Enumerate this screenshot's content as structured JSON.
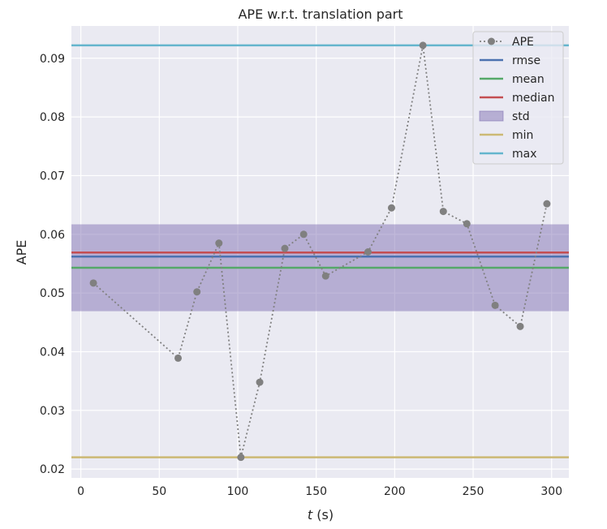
{
  "chart_data": {
    "type": "line",
    "title": "APE w.r.t. translation part",
    "xlabel_var": "t",
    "xlabel_unit": " (s)",
    "ylabel": "APE",
    "xlim": [
      -6,
      311
    ],
    "ylim": [
      0.0185,
      0.0955
    ],
    "xticks": [
      0,
      50,
      100,
      150,
      200,
      250,
      300
    ],
    "yticks": [
      0.02,
      0.03,
      0.04,
      0.05,
      0.06,
      0.07,
      0.08,
      0.09
    ],
    "grid": true,
    "legend_position": "top-right",
    "series": [
      {
        "name": "APE",
        "style": "dotted-line-with-markers",
        "color": "#808080",
        "x": [
          8,
          62,
          74,
          88,
          102,
          114,
          130,
          142,
          156,
          183,
          198,
          218,
          231,
          246,
          264,
          280,
          297
        ],
        "y": [
          0.0517,
          0.0389,
          0.0502,
          0.0585,
          0.022,
          0.0348,
          0.0576,
          0.06,
          0.0529,
          0.057,
          0.0645,
          0.0922,
          0.0639,
          0.0618,
          0.0479,
          0.0443,
          0.0652
        ]
      }
    ],
    "stats": {
      "rmse": 0.0562,
      "mean": 0.0543,
      "median": 0.0569,
      "std": 0.0074,
      "min": 0.022,
      "max": 0.0922
    },
    "legend": [
      {
        "label": "APE",
        "kind": "marker-line",
        "color": "#808080"
      },
      {
        "label": "rmse",
        "kind": "line",
        "color": "#4c72b0"
      },
      {
        "label": "mean",
        "kind": "line",
        "color": "#55a868"
      },
      {
        "label": "median",
        "kind": "line",
        "color": "#c44e52"
      },
      {
        "label": "std",
        "kind": "patch",
        "color": "#8172b3"
      },
      {
        "label": "min",
        "kind": "line",
        "color": "#ccb974"
      },
      {
        "label": "max",
        "kind": "line",
        "color": "#64b5cd"
      }
    ],
    "colors": {
      "plot_background": "#eaeaf2",
      "grid": "#ffffff",
      "rmse": "#4c72b0",
      "mean": "#55a868",
      "median": "#c44e52",
      "std": "#8172b3",
      "min": "#ccb974",
      "max": "#64b5cd",
      "ape": "#808080"
    }
  }
}
